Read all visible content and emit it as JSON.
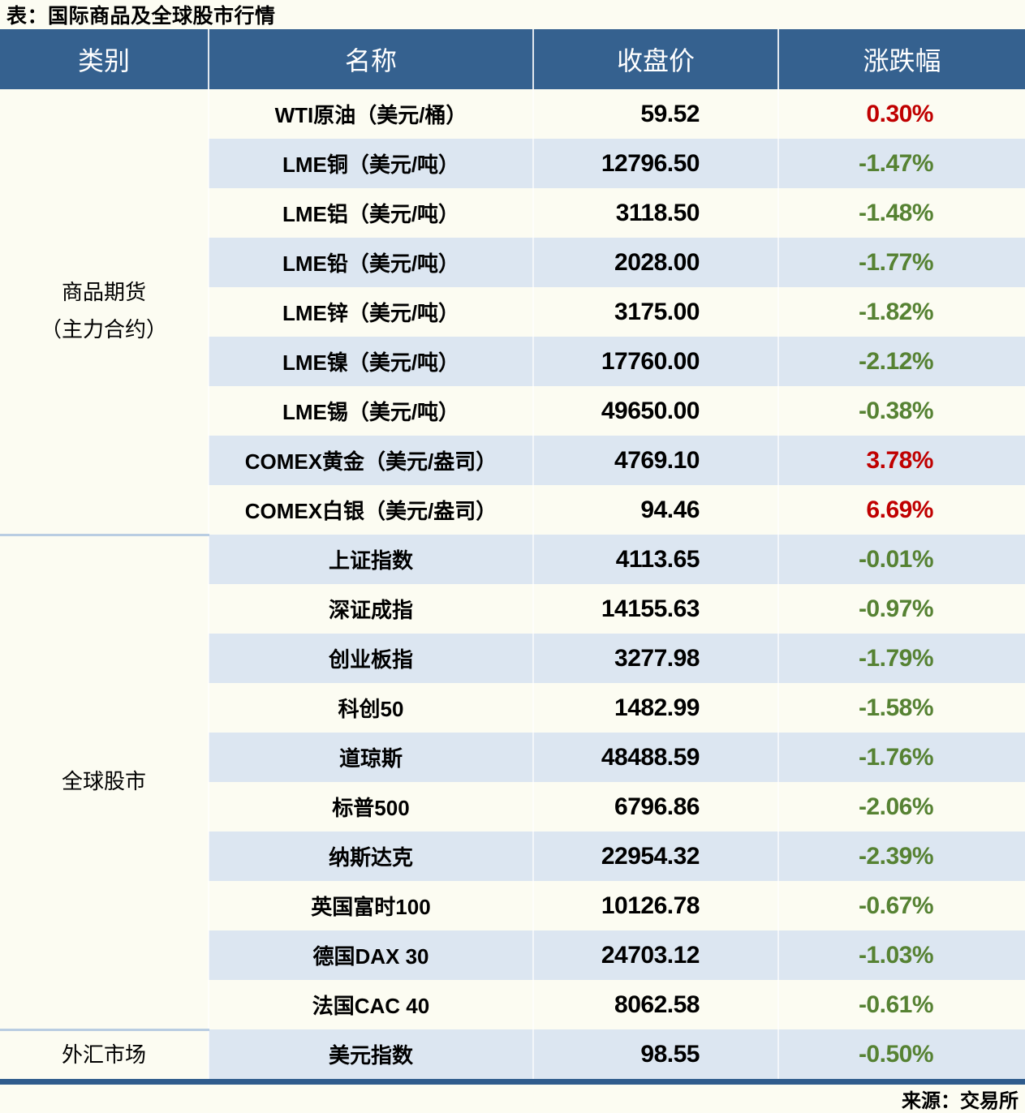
{
  "title": "表：国际商品及全球股市行情",
  "source": "来源：交易所",
  "colors": {
    "header_bg": "#35618f",
    "row_stripe": "#dce6f1",
    "up_red": "#c00000",
    "down_green": "#568233",
    "bottom_border": "#2f5c8d",
    "section_divider": "#b9cde2"
  },
  "table": {
    "headers": [
      "类别",
      "名称",
      "收盘价",
      "涨跌幅"
    ],
    "sections": [
      {
        "category_lines": [
          "商品期货",
          "（主力合约）"
        ],
        "rows": [
          {
            "name": "WTI原油（美元/桶）",
            "close": "59.52",
            "change": "0.30%"
          },
          {
            "name": "LME铜（美元/吨）",
            "close": "12796.50",
            "change": "-1.47%"
          },
          {
            "name": "LME铝（美元/吨）",
            "close": "3118.50",
            "change": "-1.48%"
          },
          {
            "name": "LME铅（美元/吨）",
            "close": "2028.00",
            "change": "-1.77%"
          },
          {
            "name": "LME锌（美元/吨）",
            "close": "3175.00",
            "change": "-1.82%"
          },
          {
            "name": "LME镍（美元/吨）",
            "close": "17760.00",
            "change": "-2.12%"
          },
          {
            "name": "LME锡（美元/吨）",
            "close": "49650.00",
            "change": "-0.38%"
          },
          {
            "name": "COMEX黄金（美元/盎司）",
            "close": "4769.10",
            "change": "3.78%"
          },
          {
            "name": "COMEX白银（美元/盎司）",
            "close": "94.46",
            "change": "6.69%"
          }
        ]
      },
      {
        "category_lines": [
          "全球股市"
        ],
        "rows": [
          {
            "name": "上证指数",
            "close": "4113.65",
            "change": "-0.01%"
          },
          {
            "name": "深证成指",
            "close": "14155.63",
            "change": "-0.97%"
          },
          {
            "name": "创业板指",
            "close": "3277.98",
            "change": "-1.79%"
          },
          {
            "name": "科创50",
            "close": "1482.99",
            "change": "-1.58%"
          },
          {
            "name": "道琼斯",
            "close": "48488.59",
            "change": "-1.76%"
          },
          {
            "name": "标普500",
            "close": "6796.86",
            "change": "-2.06%"
          },
          {
            "name": "纳斯达克",
            "close": "22954.32",
            "change": "-2.39%"
          },
          {
            "name": "英国富时100",
            "close": "10126.78",
            "change": "-0.67%"
          },
          {
            "name": "德国DAX 30",
            "close": "24703.12",
            "change": "-1.03%"
          },
          {
            "name": "法国CAC 40",
            "close": "8062.58",
            "change": "-0.61%"
          }
        ]
      },
      {
        "category_lines": [
          "外汇市场"
        ],
        "rows": [
          {
            "name": "美元指数",
            "close": "98.55",
            "change": "-0.50%"
          }
        ]
      }
    ]
  }
}
